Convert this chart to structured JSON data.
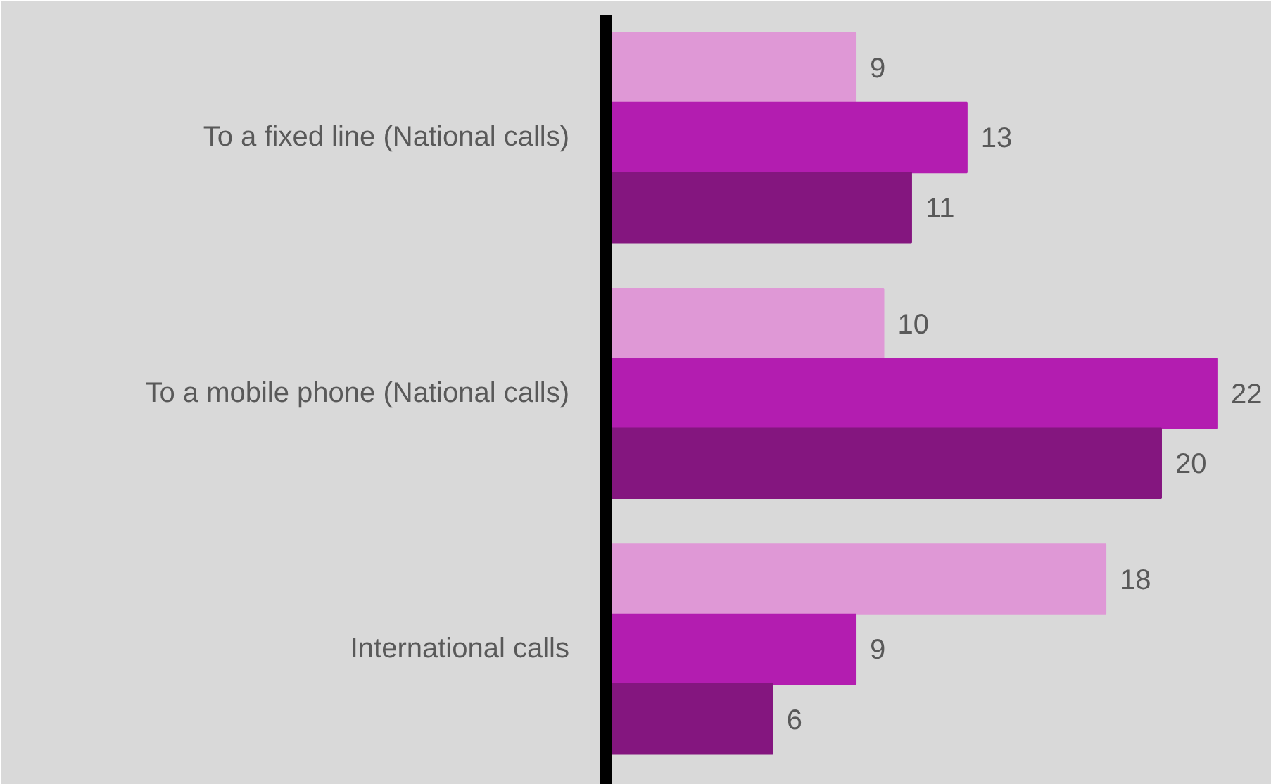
{
  "chart_data": {
    "type": "bar",
    "orientation": "horizontal",
    "data_labels": true,
    "categories": [
      "To a fixed line (National calls)",
      "To a mobile phone (National calls)",
      "International calls"
    ],
    "series": [
      {
        "color": "#df98d6",
        "values": [
          9,
          10,
          18
        ]
      },
      {
        "color": "#b31db0",
        "values": [
          13,
          22,
          9
        ]
      },
      {
        "color": "#84167f",
        "values": [
          11,
          20,
          6
        ]
      }
    ]
  }
}
